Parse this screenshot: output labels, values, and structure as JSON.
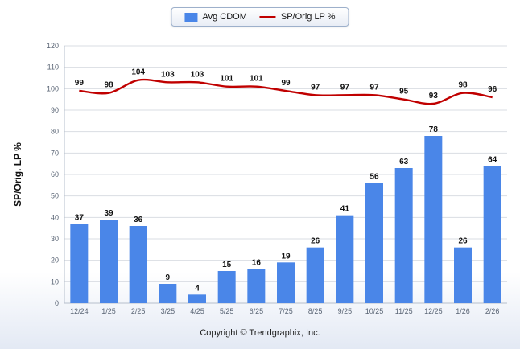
{
  "legend": {
    "bar_label": "Avg CDOM",
    "line_label": "SP/Orig LP %"
  },
  "ylabel": "SP/Orig. LP %",
  "footer": "Copyright © Trendgraphix, Inc.",
  "colors": {
    "bar": "#4a86e8",
    "line": "#c00000",
    "grid": "#d9dde3",
    "axis": "#b6bfcc",
    "label": "#111111",
    "tick_text": "#5a6575"
  },
  "chart_data": {
    "type": "bar",
    "subtype": "bar+line combo",
    "categories": [
      "12/24",
      "1/25",
      "2/25",
      "3/25",
      "4/25",
      "5/25",
      "6/25",
      "7/25",
      "8/25",
      "9/25",
      "10/25",
      "11/25",
      "12/25",
      "1/26",
      "2/26"
    ],
    "series": [
      {
        "name": "Avg CDOM",
        "type": "bar",
        "values": [
          37,
          39,
          36,
          9,
          4,
          15,
          16,
          19,
          26,
          41,
          56,
          63,
          78,
          26,
          64
        ]
      },
      {
        "name": "SP/Orig LP %",
        "type": "line",
        "values": [
          99,
          98,
          104,
          103,
          103,
          101,
          101,
          99,
          97,
          97,
          97,
          95,
          93,
          98,
          96
        ]
      }
    ],
    "title": "",
    "xlabel": "",
    "ylabel": "SP/Orig. LP %",
    "ylim": [
      0,
      120
    ],
    "ytick_step": 10,
    "grid": true,
    "legend_position": "top-center"
  }
}
